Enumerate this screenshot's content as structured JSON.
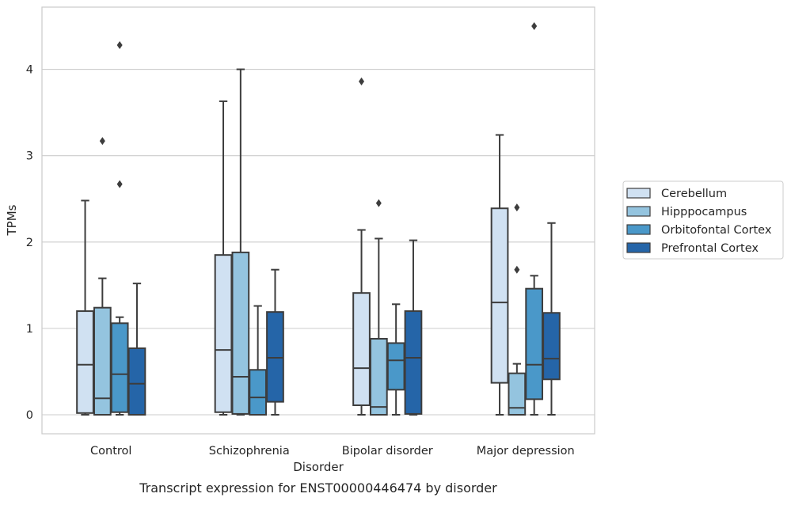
{
  "caption": "Transcript expression for ENST00000446474 by disorder",
  "chart_data": {
    "type": "box",
    "xlabel": "Disorder",
    "ylabel": "TPMs",
    "ylim": [
      -0.22,
      4.72
    ],
    "yticks": [
      0,
      1,
      2,
      3,
      4
    ],
    "grid": "horizontal",
    "legend_position": "right",
    "categories": [
      "Control",
      "Schizophrenia",
      "Bipolar disorder",
      "Major depression"
    ],
    "series": [
      {
        "name": "Cerebellum",
        "color": "#d0e1f2",
        "boxes": [
          {
            "whislo": 0.0,
            "q1": 0.02,
            "med": 0.58,
            "q3": 1.2,
            "whishi": 2.48,
            "fliers": []
          },
          {
            "whislo": 0.0,
            "q1": 0.03,
            "med": 0.75,
            "q3": 1.85,
            "whishi": 3.63,
            "fliers": []
          },
          {
            "whislo": 0.0,
            "q1": 0.11,
            "med": 0.54,
            "q3": 1.41,
            "whishi": 2.14,
            "fliers": [
              3.86
            ]
          },
          {
            "whislo": 0.0,
            "q1": 0.37,
            "med": 1.3,
            "q3": 2.39,
            "whishi": 3.24,
            "fliers": []
          }
        ]
      },
      {
        "name": "Hipppocampus",
        "color": "#94c4df",
        "boxes": [
          {
            "whislo": 0.0,
            "q1": 0.0,
            "med": 0.19,
            "q3": 1.24,
            "whishi": 1.58,
            "fliers": [
              3.17
            ]
          },
          {
            "whislo": 0.0,
            "q1": 0.01,
            "med": 0.44,
            "q3": 1.88,
            "whishi": 4.0,
            "fliers": []
          },
          {
            "whislo": 0.0,
            "q1": 0.0,
            "med": 0.09,
            "q3": 0.88,
            "whishi": 2.04,
            "fliers": [
              2.45
            ]
          },
          {
            "whislo": 0.0,
            "q1": 0.0,
            "med": 0.08,
            "q3": 0.48,
            "whishi": 0.59,
            "fliers": [
              2.4,
              1.68
            ]
          }
        ]
      },
      {
        "name": "Orbitofontal Cortex",
        "color": "#4a98c9",
        "boxes": [
          {
            "whislo": 0.0,
            "q1": 0.03,
            "med": 0.47,
            "q3": 1.06,
            "whishi": 1.13,
            "fliers": [
              4.28,
              2.67
            ]
          },
          {
            "whislo": 0.0,
            "q1": 0.0,
            "med": 0.2,
            "q3": 0.52,
            "whishi": 1.26,
            "fliers": []
          },
          {
            "whislo": 0.0,
            "q1": 0.29,
            "med": 0.63,
            "q3": 0.83,
            "whishi": 1.28,
            "fliers": []
          },
          {
            "whislo": 0.0,
            "q1": 0.18,
            "med": 0.58,
            "q3": 1.46,
            "whishi": 1.61,
            "fliers": [
              4.5
            ]
          }
        ]
      },
      {
        "name": "Prefrontal Cortex",
        "color": "#2565a8",
        "boxes": [
          {
            "whislo": 0.0,
            "q1": 0.0,
            "med": 0.36,
            "q3": 0.77,
            "whishi": 1.52,
            "fliers": []
          },
          {
            "whislo": 0.0,
            "q1": 0.15,
            "med": 0.66,
            "q3": 1.19,
            "whishi": 1.68,
            "fliers": []
          },
          {
            "whislo": 0.0,
            "q1": 0.01,
            "med": 0.66,
            "q3": 1.2,
            "whishi": 2.02,
            "fliers": []
          },
          {
            "whislo": 0.0,
            "q1": 0.41,
            "med": 0.65,
            "q3": 1.18,
            "whishi": 2.22,
            "fliers": []
          }
        ]
      }
    ]
  }
}
